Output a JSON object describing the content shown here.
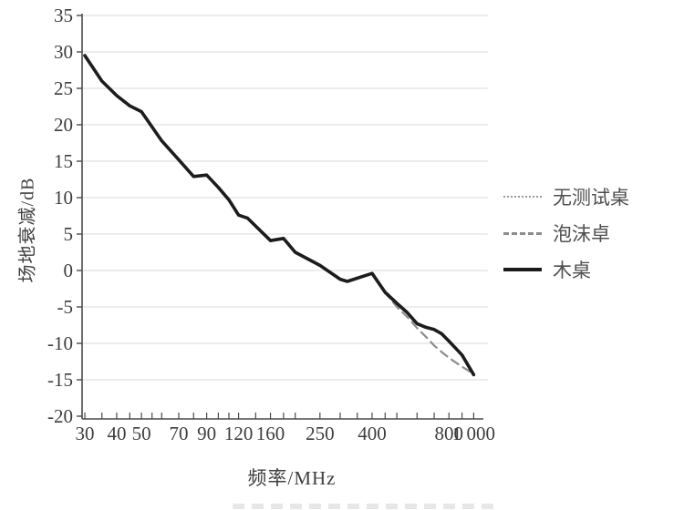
{
  "page": {
    "background": "#ffffff"
  },
  "colors": {
    "grid": "#d9d9d9",
    "axis": "#4a4a4a",
    "tick_text": "#3d3d3d"
  },
  "chart_data": {
    "type": "line",
    "title": "",
    "xlabel": "频率/MHz",
    "ylabel": "场地衰减/dB",
    "x_scale": "log",
    "xlim": [
      30,
      1000
    ],
    "ylim": [
      -20,
      35
    ],
    "grid": "horizontal",
    "legend_position": "right-middle",
    "y_ticks": [
      35,
      30,
      25,
      20,
      15,
      10,
      5,
      0,
      -5,
      -10,
      -15,
      -20
    ],
    "x_tick_labels": [
      {
        "f": 30,
        "label": "30"
      },
      {
        "f": 40,
        "label": "40"
      },
      {
        "f": 50,
        "label": "50"
      },
      {
        "f": 70,
        "label": "70"
      },
      {
        "f": 90,
        "label": "90"
      },
      {
        "f": 120,
        "label": "120"
      },
      {
        "f": 160,
        "label": "160"
      },
      {
        "f": 250,
        "label": "250"
      },
      {
        "f": 400,
        "label": "400"
      },
      {
        "f": 800,
        "label": "800"
      },
      {
        "f": 1000,
        "label": "1 000"
      }
    ],
    "x_minor_ticks": [
      30,
      35,
      40,
      45,
      50,
      55,
      60,
      70,
      80,
      90,
      100,
      110,
      120,
      140,
      160,
      180,
      200,
      250,
      300,
      350,
      400,
      450,
      500,
      600,
      700,
      800,
      900,
      1000
    ],
    "x": [
      30,
      35,
      40,
      45,
      50,
      60,
      70,
      80,
      90,
      100,
      110,
      120,
      130,
      160,
      180,
      200,
      250,
      300,
      320,
      400,
      450,
      500,
      550,
      600,
      650,
      700,
      750,
      800,
      900,
      1000
    ],
    "series": [
      {
        "key": "no-table",
        "name": "无测试桌",
        "style": "dotted",
        "color": "#9a9a9a",
        "width": 1.6,
        "y": [
          29.5,
          26.0,
          24.0,
          22.6,
          21.8,
          17.8,
          15.2,
          12.9,
          13.1,
          11.4,
          9.7,
          7.6,
          7.2,
          4.1,
          4.4,
          2.5,
          0.7,
          -1.2,
          -1.5,
          -0.4,
          -3.0,
          -4.5,
          -5.8,
          -7.3,
          -7.8,
          -8.1,
          -8.7,
          -9.7,
          -11.6,
          -14.3
        ]
      },
      {
        "key": "foam-table",
        "name": "泡沫卓",
        "style": "dashed",
        "color": "#8c8c8c",
        "width": 2.2,
        "y": [
          29.5,
          26.0,
          24.0,
          22.6,
          21.8,
          17.8,
          15.2,
          12.9,
          13.1,
          11.4,
          9.7,
          7.6,
          7.2,
          4.1,
          4.4,
          2.5,
          0.7,
          -1.2,
          -1.5,
          -0.4,
          -3.0,
          -5.0,
          -6.4,
          -7.9,
          -9.1,
          -10.3,
          -11.2,
          -12.0,
          -13.2,
          -14.2
        ]
      },
      {
        "key": "wood-table",
        "name": "木桌",
        "style": "solid",
        "color": "#1c1c1c",
        "width": 3.6,
        "y": [
          29.5,
          26.0,
          24.0,
          22.6,
          21.8,
          17.8,
          15.2,
          12.9,
          13.1,
          11.4,
          9.7,
          7.6,
          7.2,
          4.1,
          4.4,
          2.5,
          0.7,
          -1.2,
          -1.5,
          -0.4,
          -3.0,
          -4.5,
          -5.8,
          -7.3,
          -7.8,
          -8.1,
          -8.7,
          -9.7,
          -11.6,
          -14.3
        ]
      }
    ]
  }
}
